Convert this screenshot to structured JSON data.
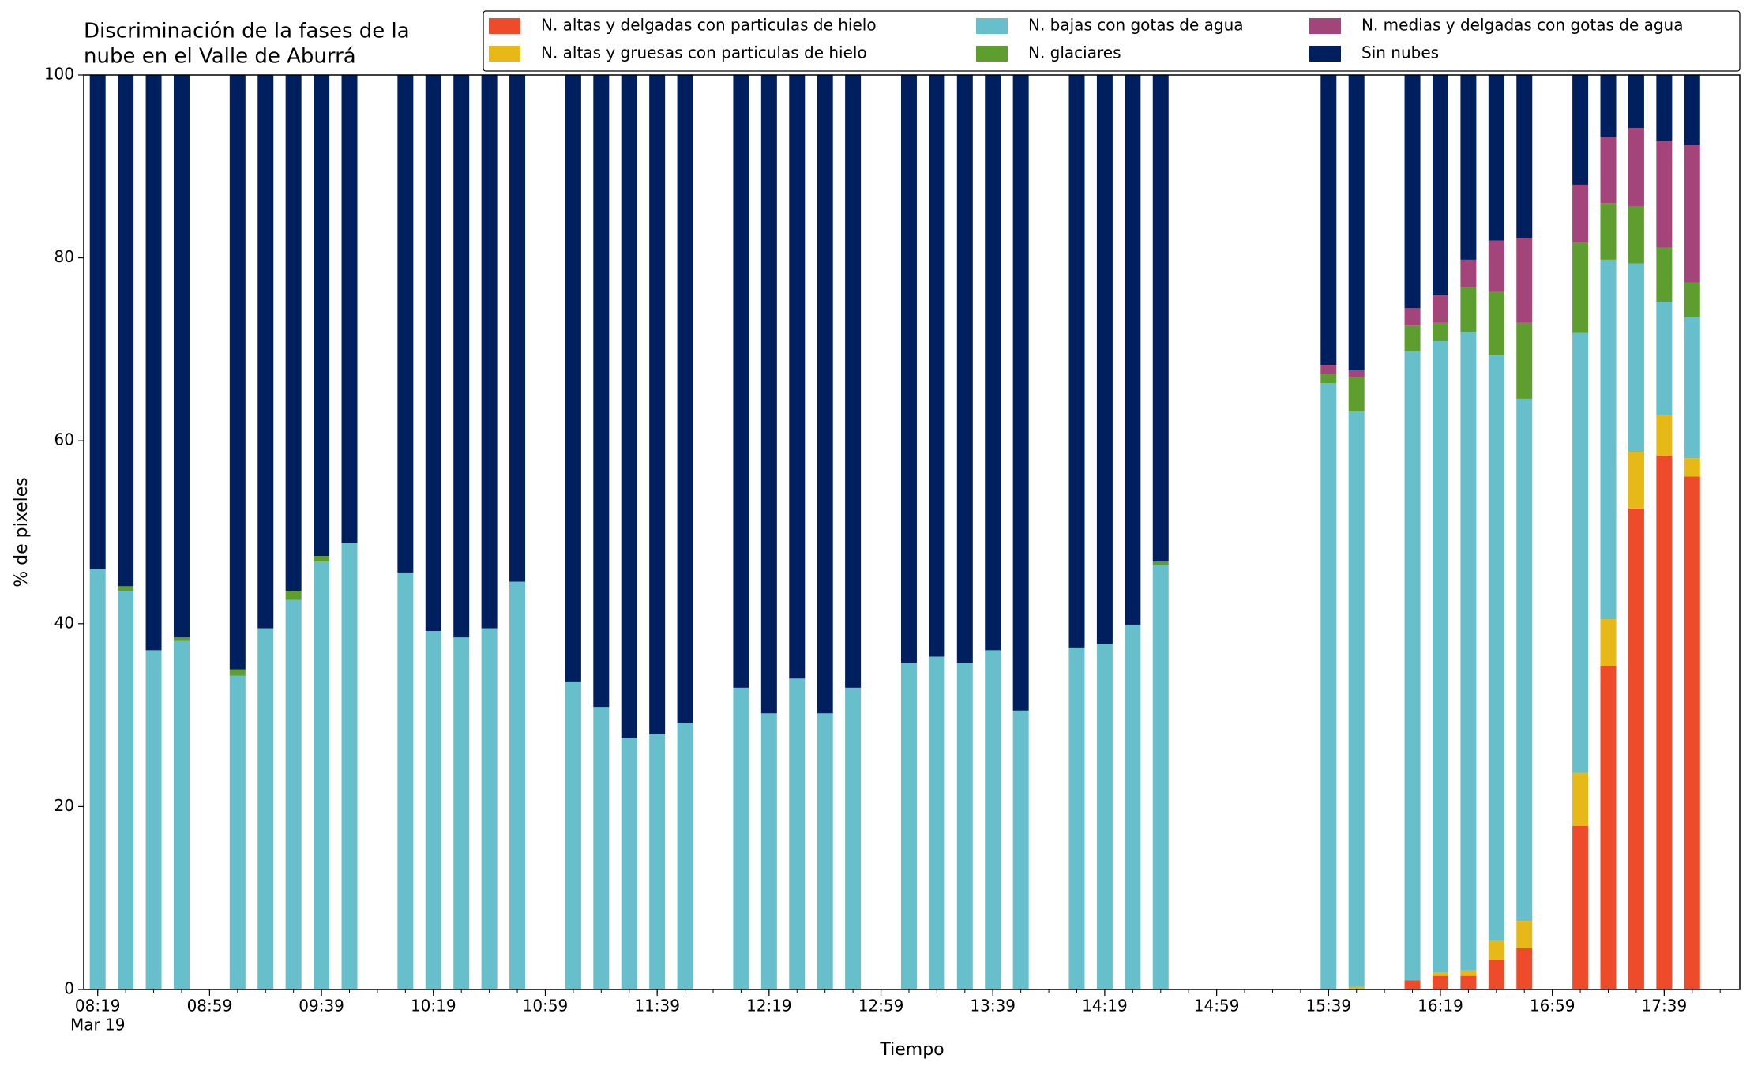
{
  "chart_data": {
    "type": "stacked_bar",
    "title": [
      "Discriminación de la fases de la",
      "nube en el Valle de Aburrá"
    ],
    "x_label": "Tiempo",
    "y_label": "% de pixeles",
    "x": [
      "08:19",
      "08:29",
      "08:39",
      "08:49",
      "09:09",
      "09:19",
      "09:29",
      "09:39",
      "09:49",
      "10:09",
      "10:19",
      "10:29",
      "10:39",
      "10:49",
      "11:09",
      "11:19",
      "11:29",
      "11:39",
      "11:49",
      "12:09",
      "12:19",
      "12:29",
      "12:39",
      "12:49",
      "13:09",
      "13:19",
      "13:29",
      "13:39",
      "13:49",
      "14:09",
      "14:19",
      "14:29",
      "14:39",
      "15:39",
      "15:49",
      "16:09",
      "16:19",
      "16:29",
      "16:39",
      "16:49",
      "17:09",
      "17:19",
      "17:29",
      "17:39",
      "17:49"
    ],
    "series": [
      {
        "name": "N. altas y delgadas con particulas de hielo",
        "color": "#ee4b2b",
        "values": [
          0,
          0,
          0,
          0,
          0,
          0,
          0,
          0,
          0,
          0,
          0,
          0,
          0,
          0,
          0,
          0,
          0,
          0,
          0,
          0,
          0,
          0,
          0,
          0,
          0,
          0,
          0,
          0,
          0,
          0,
          0,
          0,
          0,
          0,
          0,
          1.0,
          1.5,
          1.5,
          3.2,
          4.5,
          17.9,
          35.4,
          52.6,
          58.4,
          56.1
        ]
      },
      {
        "name": "N. altas y gruesas con particulas de hielo",
        "color": "#e6b818",
        "values": [
          0,
          0,
          0,
          0,
          0,
          0,
          0,
          0,
          0,
          0,
          0,
          0,
          0,
          0,
          0,
          0,
          0,
          0,
          0,
          0,
          0,
          0,
          0,
          0,
          0,
          0,
          0,
          0,
          0,
          0,
          0,
          0,
          0,
          0,
          0.3,
          0,
          0.4,
          0.6,
          2.1,
          3.0,
          5.8,
          5.1,
          6.2,
          4.4,
          2.0
        ]
      },
      {
        "name": "N. bajas con gotas de agua",
        "color": "#66bfcb",
        "values": [
          46,
          43.6,
          37.1,
          38.1,
          34.3,
          39.5,
          42.6,
          46.8,
          48.8,
          45.6,
          39.2,
          38.5,
          39.5,
          44.6,
          33.6,
          30.9,
          27.5,
          27.9,
          29.1,
          33.0,
          30.2,
          34.0,
          30.2,
          33.0,
          35.7,
          36.4,
          35.7,
          37.1,
          30.5,
          37.4,
          37.8,
          39.9,
          46.4,
          66.3,
          62.9,
          68.8,
          69.0,
          69.8,
          64.1,
          57.1,
          48.1,
          39.3,
          20.6,
          12.4,
          15.4
        ]
      },
      {
        "name": "N. glaciares",
        "color": "#5e9e2e",
        "values": [
          0,
          0.5,
          0,
          0.4,
          0.7,
          0,
          1.0,
          0.6,
          0,
          0,
          0,
          0,
          0,
          0,
          0,
          0,
          0,
          0,
          0,
          0,
          0,
          0,
          0,
          0,
          0,
          0,
          0,
          0,
          0,
          0,
          0,
          0,
          0.4,
          1.0,
          3.8,
          2.8,
          2.0,
          4.9,
          6.9,
          8.3,
          9.9,
          6.2,
          6.2,
          5.9,
          3.8
        ]
      },
      {
        "name": "N. medias y delgadas con gotas de agua",
        "color": "#a3457a",
        "values": [
          0,
          0,
          0,
          0,
          0,
          0,
          0,
          0,
          0,
          0,
          0,
          0,
          0,
          0,
          0,
          0,
          0,
          0,
          0,
          0,
          0,
          0,
          0,
          0,
          0,
          0,
          0,
          0,
          0,
          0,
          0,
          0,
          0,
          1.0,
          0.7,
          1.9,
          3.0,
          3.0,
          5.6,
          9.3,
          6.3,
          7.2,
          8.6,
          11.7,
          15.1
        ]
      },
      {
        "name": "Sin nubes",
        "color": "#001f5f",
        "values": [
          54,
          55.9,
          62.9,
          61.5,
          65,
          60.5,
          56.4,
          52.6,
          51.2,
          54.4,
          60.8,
          61.5,
          60.5,
          55.4,
          66.4,
          69.1,
          72.5,
          72.1,
          70.9,
          67,
          69.8,
          66,
          69.8,
          67,
          64.3,
          63.6,
          64.3,
          62.9,
          69.5,
          62.6,
          62.2,
          60.1,
          53.2,
          31.7,
          32.3,
          25.5,
          24.1,
          20.2,
          18.1,
          17.8,
          12.0,
          6.8,
          5.8,
          7.2,
          7.6
        ]
      }
    ],
    "xlim": [
      "08:14",
      "18:06"
    ],
    "xticks": [
      "08:19",
      "08:59",
      "09:39",
      "10:19",
      "10:59",
      "11:39",
      "12:19",
      "12:59",
      "13:39",
      "14:19",
      "14:59",
      "15:39",
      "16:19",
      "16:59",
      "17:39"
    ],
    "x_tick_sublabel": "Mar 19",
    "ylim": [
      0,
      100
    ],
    "yticks": [
      0,
      20,
      40,
      60,
      80,
      100
    ],
    "legend": "top-right",
    "legend_columns": 3
  }
}
